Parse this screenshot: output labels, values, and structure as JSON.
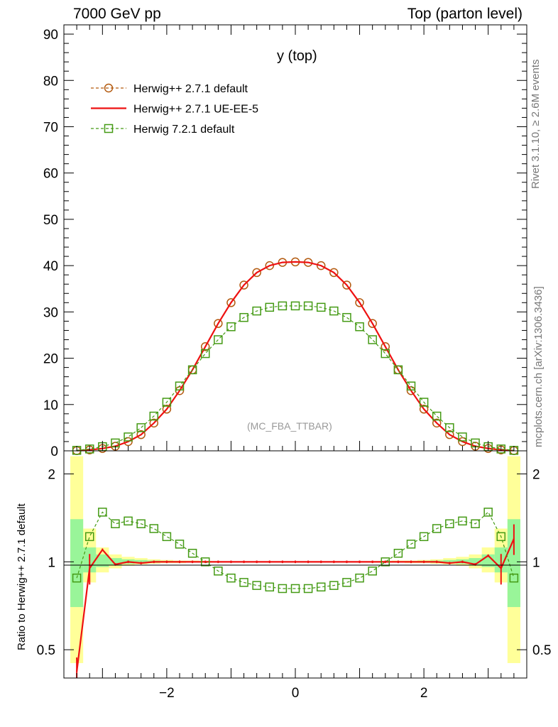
{
  "header": {
    "left": "7000 GeV pp",
    "right": "Top (parton level)"
  },
  "side_labels": {
    "top": "Rivet 3.1.10, ≥ 2.6M events",
    "bottom": "mcplots.cern.ch [arXiv:1306.3436]"
  },
  "colors": {
    "herwig_default": "#b35a0f",
    "herwig_ue": "#ee1111",
    "herwig72": "#449a14",
    "band_yellow": "#ffff99",
    "band_green": "#99f599"
  },
  "chart_data": [
    {
      "type": "line",
      "title": "y (top)",
      "watermark": "(MC_FBA_TTBAR)",
      "xlim": [
        -3.6,
        3.6
      ],
      "ylim": [
        0,
        92
      ],
      "yticks": [
        0,
        10,
        20,
        30,
        40,
        50,
        60,
        70,
        80,
        90
      ],
      "grid": false,
      "legend_position": "top-left",
      "x": [
        -3.4,
        -3.2,
        -3.0,
        -2.8,
        -2.6,
        -2.4,
        -2.2,
        -2.0,
        -1.8,
        -1.6,
        -1.4,
        -1.2,
        -1.0,
        -0.8,
        -0.6,
        -0.4,
        -0.2,
        0.0,
        0.2,
        0.4,
        0.6,
        0.8,
        1.0,
        1.2,
        1.4,
        1.6,
        1.8,
        2.0,
        2.2,
        2.4,
        2.6,
        2.8,
        3.0,
        3.2,
        3.4
      ],
      "series": [
        {
          "name": "Herwig++ 2.7.1 default",
          "style": "dashed-circle",
          "values": [
            0.05,
            0.2,
            0.5,
            1.0,
            2.0,
            3.5,
            6.0,
            9.0,
            13.0,
            17.5,
            22.5,
            27.5,
            32.0,
            35.8,
            38.5,
            40.0,
            40.7,
            40.8,
            40.7,
            40.0,
            38.5,
            35.8,
            32.0,
            27.5,
            22.5,
            17.5,
            13.0,
            9.0,
            6.0,
            3.5,
            2.0,
            1.0,
            0.5,
            0.2,
            0.05
          ]
        },
        {
          "name": "Herwig++ 2.7.1 UE-EE-5",
          "style": "solid",
          "values": [
            0.05,
            0.2,
            0.5,
            1.0,
            2.0,
            3.5,
            6.0,
            9.0,
            13.0,
            17.5,
            22.5,
            27.5,
            32.0,
            35.8,
            38.5,
            40.0,
            40.7,
            40.8,
            40.7,
            40.0,
            38.5,
            35.8,
            32.0,
            27.5,
            22.5,
            17.5,
            13.0,
            9.0,
            6.0,
            3.5,
            2.0,
            1.0,
            0.5,
            0.2,
            0.05
          ]
        },
        {
          "name": "Herwig 7.2.1 default",
          "style": "dashed-square",
          "values": [
            0.1,
            0.4,
            0.9,
            1.7,
            3.0,
            5.0,
            7.5,
            10.5,
            14.0,
            17.5,
            21.0,
            24.0,
            26.8,
            28.8,
            30.2,
            31.0,
            31.3,
            31.3,
            31.3,
            31.0,
            30.2,
            28.8,
            26.8,
            24.0,
            21.0,
            17.5,
            14.0,
            10.5,
            7.5,
            5.0,
            3.0,
            1.7,
            0.9,
            0.4,
            0.1
          ]
        }
      ]
    },
    {
      "type": "line",
      "ylabel": "Ratio to Herwig++ 2.7.1 default",
      "xlim": [
        -3.6,
        3.6
      ],
      "ylim": [
        0.4,
        2.4
      ],
      "yscale": "log",
      "xticks": [
        -2,
        0,
        2
      ],
      "yticks": [
        0.5,
        1,
        2
      ],
      "x": [
        -3.4,
        -3.2,
        -3.0,
        -2.8,
        -2.6,
        -2.4,
        -2.2,
        -2.0,
        -1.8,
        -1.6,
        -1.4,
        -1.2,
        -1.0,
        -0.8,
        -0.6,
        -0.4,
        -0.2,
        0.0,
        0.2,
        0.4,
        0.6,
        0.8,
        1.0,
        1.2,
        1.4,
        1.6,
        1.8,
        2.0,
        2.2,
        2.4,
        2.6,
        2.8,
        3.0,
        3.2,
        3.4
      ],
      "band_yellow": [
        [
          0.45,
          2.3
        ],
        [
          0.85,
          1.3
        ],
        [
          0.92,
          1.12
        ],
        [
          0.95,
          1.06
        ],
        [
          0.97,
          1.04
        ],
        [
          0.98,
          1.03
        ],
        [
          0.985,
          1.02
        ],
        [
          0.99,
          1.015
        ],
        [
          0.99,
          1.01
        ],
        [
          0.995,
          1.01
        ],
        [
          0.995,
          1.007
        ],
        [
          0.995,
          1.005
        ],
        [
          0.997,
          1.004
        ],
        [
          0.997,
          1.003
        ],
        [
          0.998,
          1.003
        ],
        [
          0.998,
          1.003
        ],
        [
          0.998,
          1.003
        ],
        [
          0.998,
          1.003
        ],
        [
          0.998,
          1.003
        ],
        [
          0.998,
          1.003
        ],
        [
          0.998,
          1.003
        ],
        [
          0.997,
          1.003
        ],
        [
          0.997,
          1.004
        ],
        [
          0.995,
          1.005
        ],
        [
          0.995,
          1.007
        ],
        [
          0.995,
          1.01
        ],
        [
          0.99,
          1.01
        ],
        [
          0.99,
          1.015
        ],
        [
          0.985,
          1.02
        ],
        [
          0.98,
          1.03
        ],
        [
          0.97,
          1.04
        ],
        [
          0.95,
          1.06
        ],
        [
          0.92,
          1.12
        ],
        [
          0.85,
          1.3
        ],
        [
          0.45,
          2.3
        ]
      ],
      "band_green": [
        [
          0.7,
          1.4
        ],
        [
          0.92,
          1.12
        ],
        [
          0.96,
          1.06
        ],
        [
          0.975,
          1.03
        ],
        [
          0.985,
          1.02
        ],
        [
          0.99,
          1.015
        ],
        [
          0.992,
          1.01
        ],
        [
          0.995,
          1.008
        ],
        [
          0.995,
          1.006
        ],
        [
          0.997,
          1.005
        ],
        [
          0.997,
          1.004
        ],
        [
          0.998,
          1.003
        ],
        [
          0.998,
          1.002
        ],
        [
          0.999,
          1.002
        ],
        [
          0.999,
          1.002
        ],
        [
          0.999,
          1.002
        ],
        [
          0.999,
          1.002
        ],
        [
          0.999,
          1.002
        ],
        [
          0.999,
          1.002
        ],
        [
          0.999,
          1.002
        ],
        [
          0.999,
          1.002
        ],
        [
          0.999,
          1.002
        ],
        [
          0.998,
          1.002
        ],
        [
          0.998,
          1.003
        ],
        [
          0.997,
          1.004
        ],
        [
          0.997,
          1.005
        ],
        [
          0.995,
          1.006
        ],
        [
          0.995,
          1.008
        ],
        [
          0.992,
          1.01
        ],
        [
          0.99,
          1.015
        ],
        [
          0.985,
          1.02
        ],
        [
          0.975,
          1.03
        ],
        [
          0.96,
          1.06
        ],
        [
          0.92,
          1.12
        ],
        [
          0.7,
          1.4
        ]
      ],
      "series": [
        {
          "name": "Herwig++ 2.7.1 UE-EE-5",
          "style": "solid",
          "values": [
            0.42,
            0.95,
            1.1,
            0.98,
            1.0,
            0.99,
            1.0,
            1.0,
            1.0,
            1.0,
            1.0,
            1.0,
            1.0,
            1.0,
            1.0,
            1.0,
            1.0,
            1.0,
            1.0,
            1.0,
            1.0,
            1.0,
            1.0,
            1.0,
            1.0,
            1.0,
            1.0,
            1.0,
            1.0,
            0.99,
            1.0,
            0.98,
            1.05,
            0.95,
            1.2
          ]
        },
        {
          "name": "Herwig 7.2.1 default",
          "style": "dashed-square",
          "values": [
            0.88,
            1.22,
            1.48,
            1.35,
            1.38,
            1.35,
            1.3,
            1.22,
            1.15,
            1.07,
            1.0,
            0.93,
            0.88,
            0.85,
            0.83,
            0.82,
            0.81,
            0.81,
            0.81,
            0.82,
            0.83,
            0.85,
            0.88,
            0.93,
            1.0,
            1.07,
            1.15,
            1.22,
            1.3,
            1.35,
            1.38,
            1.35,
            1.48,
            1.22,
            0.88
          ]
        }
      ]
    }
  ]
}
